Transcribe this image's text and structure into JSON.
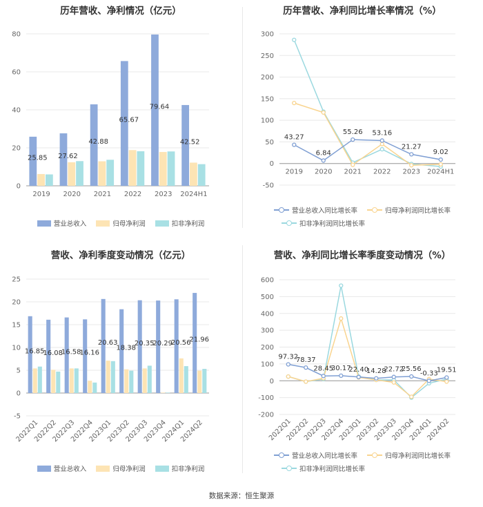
{
  "colors": {
    "revenue": "#8eaadb",
    "parent": "#fde4b4",
    "deducted": "#a8e0e4",
    "rev_line": "#7f9fd3",
    "parent_line": "#f9d48f",
    "ded_line": "#9ad8df",
    "grid": "#e8e8e8",
    "axis": "#999999"
  },
  "footer": {
    "source": "数据来源：恒生聚源"
  },
  "charts": {
    "annual_bar": {
      "chart_data": {
        "type": "bar",
        "title": "历年营收、净利情况（亿元）",
        "categories": [
          "2019",
          "2020",
          "2021",
          "2022",
          "2023",
          "2024H1"
        ],
        "ylim": [
          0,
          80
        ],
        "yticks": [
          0,
          20,
          40,
          60,
          80
        ],
        "series": [
          {
            "name": "营业总收入",
            "color_key": "revenue",
            "values": [
              25.85,
              27.62,
              42.88,
              65.67,
              79.64,
              42.52
            ],
            "labels": [
              "25.85",
              "27.62",
              "42.88",
              "65.67",
              "79.64",
              "42.52"
            ]
          },
          {
            "name": "归母净利润",
            "color_key": "parent",
            "values": [
              6.2,
              12.4,
              12.9,
              18.8,
              17.8,
              12.2
            ]
          },
          {
            "name": "扣非净利润",
            "color_key": "deducted",
            "values": [
              6.0,
              13.0,
              13.7,
              18.2,
              18.1,
              11.4
            ]
          }
        ]
      }
    },
    "annual_line": {
      "chart_data": {
        "type": "line",
        "title": "历年营收、净利同比增长率情况（%）",
        "categories": [
          "2019",
          "2020",
          "2021",
          "2022",
          "2023",
          "2024H1"
        ],
        "ylim": [
          -50,
          300
        ],
        "yticks": [
          -50,
          0,
          50,
          100,
          150,
          200,
          250,
          300
        ],
        "series": [
          {
            "name": "营业总收入同比增长率",
            "color_key": "rev_line",
            "values": [
              43.27,
              6.84,
              55.26,
              53.16,
              21.27,
              9.02
            ],
            "labels": [
              "43.27",
              "6.84",
              "55.26",
              "53.16",
              "21.27",
              "9.02"
            ]
          },
          {
            "name": "归母净利润同比增长率",
            "color_key": "parent_line",
            "values": [
              140,
              118,
              -3,
              45,
              -4,
              -2
            ]
          },
          {
            "name": "扣非净利润同比增长率",
            "color_key": "ded_line",
            "values": [
              286,
              120,
              2,
              33,
              -1,
              -7
            ]
          }
        ]
      }
    },
    "quarter_bar": {
      "chart_data": {
        "type": "bar",
        "title": "营收、净利季度变动情况（亿元）",
        "categories": [
          "2022Q1",
          "2022Q2",
          "2022Q3",
          "2022Q4",
          "2023Q1",
          "2023Q2",
          "2023Q3",
          "2023Q4",
          "2024Q1",
          "2024Q2"
        ],
        "ylim": [
          -5,
          25
        ],
        "yticks": [
          -5,
          0,
          5,
          10,
          15,
          20,
          25
        ],
        "series": [
          {
            "name": "营业总收入",
            "color_key": "revenue",
            "values": [
              16.85,
              16.08,
              16.58,
              16.16,
              20.63,
              18.38,
              20.35,
              20.29,
              20.56,
              21.96
            ],
            "labels": [
              "16.85",
              "16.08",
              "16.58",
              "16.16",
              "20.63",
              "18.38",
              "20.35",
              "20.29",
              "20.56",
              "21.96"
            ]
          },
          {
            "name": "归母净利润",
            "color_key": "parent",
            "values": [
              5.4,
              5.1,
              5.4,
              2.7,
              7.1,
              5.2,
              5.4,
              0.1,
              7.6,
              4.9
            ]
          },
          {
            "name": "扣非净利润",
            "color_key": "deducted",
            "values": [
              5.8,
              4.7,
              5.4,
              2.3,
              7.0,
              4.9,
              6.0,
              0.1,
              5.9,
              5.3
            ]
          }
        ]
      }
    },
    "quarter_line": {
      "chart_data": {
        "type": "line",
        "title": "营收、净利同比增长率季度变动情况（%）",
        "categories": [
          "2022Q1",
          "2022Q2",
          "2022Q3",
          "2022Q4",
          "2023Q1",
          "2023Q2",
          "2023Q3",
          "2023Q4",
          "2024Q1",
          "2024Q2"
        ],
        "ylim": [
          -200,
          600
        ],
        "yticks": [
          -200,
          -100,
          0,
          100,
          200,
          300,
          400,
          500,
          600
        ],
        "series": [
          {
            "name": "营业总收入同比增长率",
            "color_key": "rev_line",
            "values": [
              97.32,
              78.37,
              28.45,
              30.17,
              22.4,
              14.28,
              22.72,
              25.56,
              -0.33,
              19.51
            ],
            "labels": [
              "97.32",
              "78.37",
              "28.45",
              "30.17",
              "22.40",
              "14.28",
              "22.72",
              "25.56",
              "-0.33",
              "19.51"
            ]
          },
          {
            "name": "归母净利润同比增长率",
            "color_key": "parent_line",
            "values": [
              25,
              -5,
              15,
              370,
              20,
              5,
              -10,
              -95,
              10,
              -5
            ]
          },
          {
            "name": "扣非净利润同比增长率",
            "color_key": "ded_line",
            "values": [
              25,
              -5,
              10,
              565,
              25,
              5,
              5,
              -100,
              -15,
              10
            ]
          }
        ]
      }
    }
  }
}
